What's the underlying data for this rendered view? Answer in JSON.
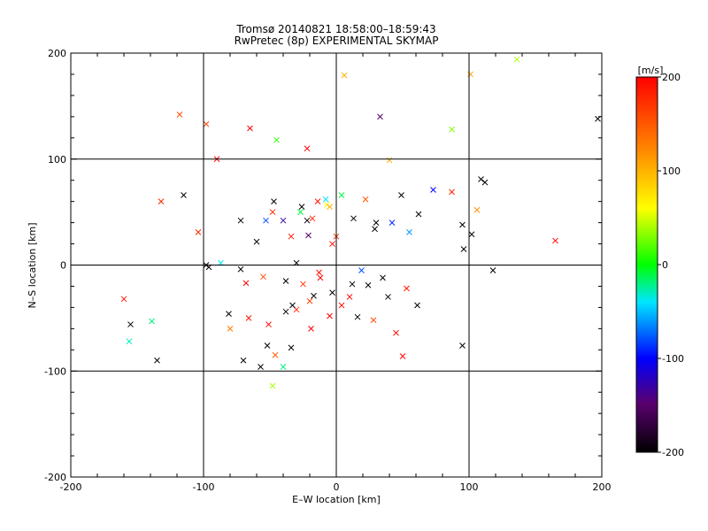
{
  "chart_data": {
    "type": "scatter",
    "title": "Tromsø 20140821 18:58:00–18:59:43",
    "subtitle": "RwPretec (8p) EXPERIMENTAL SKYMAP",
    "xlabel": "E–W location [km]",
    "ylabel": "N–S location [km]",
    "xlim": [
      -200,
      200
    ],
    "ylim": [
      -200,
      200
    ],
    "x_ticks": [
      "-200",
      "-100",
      "0",
      "100",
      "200"
    ],
    "y_ticks": [
      "-200",
      "-100",
      "0",
      "100",
      "200"
    ],
    "grid": true,
    "colorbar": {
      "label": "[m/s]",
      "range": [
        -200,
        200
      ],
      "ticks": [
        "200",
        "100",
        "0",
        "-100",
        "-200"
      ]
    },
    "marker_types": [
      "plus",
      "x"
    ],
    "points": [
      [
        -118,
        142,
        160,
        "x"
      ],
      [
        -98,
        133,
        160,
        "x"
      ],
      [
        -104,
        31,
        180,
        "x"
      ],
      [
        -132,
        60,
        180,
        "x"
      ],
      [
        -160,
        -32,
        190,
        "x"
      ],
      [
        -155,
        -56,
        -200,
        "x"
      ],
      [
        -139,
        -53,
        -20,
        "x"
      ],
      [
        -156,
        -72,
        -30,
        "x"
      ],
      [
        -135,
        -90,
        -200,
        "x"
      ],
      [
        -65,
        129,
        200,
        "x"
      ],
      [
        -45,
        118,
        10,
        "x"
      ],
      [
        -22,
        110,
        200,
        "x"
      ],
      [
        6,
        179,
        100,
        "x"
      ],
      [
        101,
        180,
        110,
        "x"
      ],
      [
        136,
        194,
        40,
        "x"
      ],
      [
        33,
        140,
        -150,
        "x"
      ],
      [
        87,
        128,
        30,
        "x"
      ],
      [
        40,
        99,
        100,
        "x"
      ],
      [
        -115,
        66,
        -200,
        "x"
      ],
      [
        -90,
        100,
        200,
        "x"
      ],
      [
        -72,
        42,
        -200,
        "x"
      ],
      [
        -53,
        42,
        -80,
        "x"
      ],
      [
        -48,
        50,
        170,
        "x"
      ],
      [
        -26,
        55,
        -200,
        "x"
      ],
      [
        -18,
        44,
        180,
        "x"
      ],
      [
        -22,
        42,
        -200,
        "x"
      ],
      [
        -14,
        60,
        190,
        "x"
      ],
      [
        -7,
        57,
        60,
        "x"
      ],
      [
        -5,
        55,
        100,
        "x"
      ],
      [
        22,
        62,
        150,
        "x"
      ],
      [
        49,
        66,
        -200,
        "x"
      ],
      [
        73,
        71,
        -100,
        "x"
      ],
      [
        87,
        69,
        180,
        "x"
      ],
      [
        109,
        81,
        -200,
        "x"
      ],
      [
        112,
        78,
        -200,
        "x"
      ],
      [
        95,
        38,
        -200,
        "x"
      ],
      [
        102,
        29,
        -200,
        "x"
      ],
      [
        96,
        15,
        -200,
        "x"
      ],
      [
        118,
        -5,
        -200,
        "x"
      ],
      [
        -34,
        27,
        190,
        "x"
      ],
      [
        -40,
        42,
        -130,
        "x"
      ],
      [
        -21,
        28,
        -150,
        "x"
      ],
      [
        0,
        27,
        170,
        "x"
      ],
      [
        13,
        44,
        -200,
        "x"
      ],
      [
        29,
        34,
        -200,
        "x"
      ],
      [
        42,
        40,
        -90,
        "x"
      ],
      [
        55,
        31,
        -60,
        "x"
      ],
      [
        62,
        48,
        -200,
        "x"
      ],
      [
        -98,
        0,
        -200,
        "x"
      ],
      [
        -87,
        2,
        -40,
        "x"
      ],
      [
        -72,
        -4,
        -200,
        "x"
      ],
      [
        -55,
        -11,
        160,
        "x"
      ],
      [
        -38,
        -15,
        -200,
        "x"
      ],
      [
        -25,
        -18,
        170,
        "x"
      ],
      [
        -12,
        -12,
        200,
        "x"
      ],
      [
        -3,
        -26,
        -200,
        "x"
      ],
      [
        10,
        -30,
        200,
        "x"
      ],
      [
        24,
        -19,
        -200,
        "x"
      ],
      [
        39,
        -30,
        -200,
        "x"
      ],
      [
        53,
        -22,
        190,
        "x"
      ],
      [
        61,
        -38,
        -200,
        "x"
      ],
      [
        -81,
        -46,
        -200,
        "x"
      ],
      [
        -66,
        -50,
        190,
        "x"
      ],
      [
        -51,
        -56,
        200,
        "x"
      ],
      [
        -38,
        -44,
        -200,
        "x"
      ],
      [
        -30,
        -42,
        180,
        "x"
      ],
      [
        -17,
        -29,
        -200,
        "x"
      ],
      [
        -5,
        -48,
        200,
        "x"
      ],
      [
        16,
        -49,
        -200,
        "x"
      ],
      [
        28,
        -52,
        160,
        "x"
      ],
      [
        45,
        -64,
        190,
        "x"
      ],
      [
        -70,
        -90,
        -200,
        "x"
      ],
      [
        -57,
        -96,
        -200,
        "x"
      ],
      [
        -46,
        -85,
        150,
        "x"
      ],
      [
        -34,
        -78,
        -200,
        "x"
      ],
      [
        -48,
        -114,
        40,
        "x"
      ],
      [
        -19,
        -60,
        200,
        "x"
      ],
      [
        50,
        -86,
        200,
        "x"
      ],
      [
        -80,
        -60,
        130,
        "x"
      ],
      [
        95,
        -76,
        -200,
        "x"
      ],
      [
        -40,
        -96,
        -20,
        "x"
      ],
      [
        30,
        40,
        -200,
        "x"
      ],
      [
        -47,
        60,
        -200,
        "x"
      ],
      [
        -30,
        2,
        -200,
        "x"
      ],
      [
        -13,
        -7,
        190,
        "x"
      ],
      [
        4,
        -38,
        190,
        "x"
      ],
      [
        19,
        -5,
        -80,
        "x"
      ],
      [
        35,
        -12,
        -200,
        "x"
      ],
      [
        -60,
        22,
        -200,
        "x"
      ],
      [
        -96,
        -2,
        -200,
        "x"
      ],
      [
        -68,
        -17,
        200,
        "x"
      ],
      [
        -27,
        50,
        -10,
        "x"
      ],
      [
        -8,
        62,
        -40,
        "x"
      ],
      [
        4,
        66,
        -10,
        "x"
      ],
      [
        197,
        138,
        -200,
        "x"
      ],
      [
        165,
        23,
        200,
        "x"
      ],
      [
        106,
        52,
        120,
        "x"
      ],
      [
        -33,
        -38,
        -200,
        "x"
      ],
      [
        -20,
        -34,
        160,
        "x"
      ],
      [
        12,
        -18,
        -200,
        "x"
      ],
      [
        -52,
        -76,
        -200,
        "x"
      ],
      [
        -3,
        20,
        190,
        "x"
      ]
    ]
  }
}
